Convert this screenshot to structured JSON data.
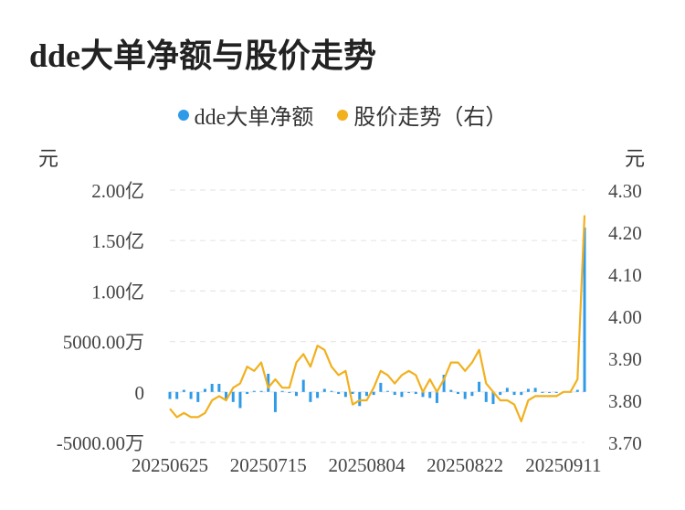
{
  "title": "dde大单净额与股价走势",
  "chart_data": {
    "type": "bar+line",
    "legend": [
      {
        "name": "dde大单净额",
        "color": "#2f9be8"
      },
      {
        "name": "股价走势（右）",
        "color": "#f2b01e"
      }
    ],
    "left_unit": "元",
    "right_unit": "元",
    "left_axis": {
      "min": -50000000,
      "max": 200000000,
      "ticks": [
        -50000000,
        0,
        50000000,
        100000000,
        150000000,
        200000000
      ],
      "tick_labels": [
        "-5000.00万",
        "0",
        "5000.00万",
        "1.00亿",
        "1.50亿",
        "2.00亿"
      ]
    },
    "right_axis": {
      "min": 3.7,
      "max": 4.3,
      "ticks": [
        3.7,
        3.8,
        3.9,
        4.0,
        4.1,
        4.2,
        4.3
      ],
      "tick_labels": [
        "3.70",
        "3.80",
        "3.90",
        "4.00",
        "4.10",
        "4.20",
        "4.30"
      ]
    },
    "x_tick_labels": [
      "20250625",
      "20250715",
      "20250804",
      "20250822",
      "20250911"
    ],
    "x_tick_indices": [
      0,
      14,
      28,
      42,
      56
    ],
    "dde_net": [
      -7000000,
      -7000000,
      2000000,
      -7000000,
      -10000000,
      3000000,
      8000000,
      8000000,
      -8000000,
      -10000000,
      -16000000,
      -2000000,
      1000000,
      1000000,
      18000000,
      -20000000,
      1000000,
      -1000000,
      -4000000,
      12000000,
      -10000000,
      -6000000,
      3000000,
      1000000,
      -2000000,
      -5000000,
      -2000000,
      -14000000,
      -4000000,
      -3000000,
      9000000,
      1000000,
      -3000000,
      -5000000,
      -1000000,
      -2000000,
      -5000000,
      -6000000,
      -11000000,
      17000000,
      2000000,
      -2000000,
      -7000000,
      -4000000,
      10000000,
      -10000000,
      -12000000,
      -3000000,
      4000000,
      -3000000,
      -3000000,
      3000000,
      4000000,
      -1000000,
      -1000000,
      -1000000,
      0,
      0,
      2000000,
      163000000
    ],
    "price": [
      3.78,
      3.76,
      3.77,
      3.76,
      3.76,
      3.77,
      3.8,
      3.81,
      3.8,
      3.83,
      3.84,
      3.88,
      3.87,
      3.89,
      3.83,
      3.85,
      3.83,
      3.83,
      3.89,
      3.91,
      3.88,
      3.93,
      3.92,
      3.88,
      3.86,
      3.87,
      3.79,
      3.8,
      3.8,
      3.83,
      3.87,
      3.86,
      3.84,
      3.86,
      3.87,
      3.86,
      3.82,
      3.85,
      3.82,
      3.85,
      3.89,
      3.89,
      3.87,
      3.89,
      3.92,
      3.84,
      3.82,
      3.8,
      3.8,
      3.79,
      3.75,
      3.8,
      3.81,
      3.81,
      3.81,
      3.81,
      3.82,
      3.82,
      3.85,
      4.24
    ]
  }
}
